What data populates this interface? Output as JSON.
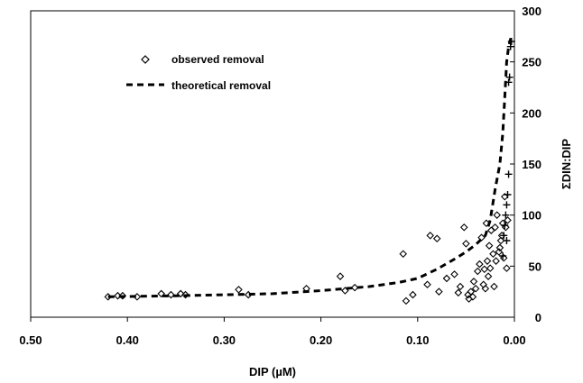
{
  "chart_data": {
    "type": "scatter",
    "title": "",
    "xlabel": "DIP (µM)",
    "ylabel": "ΣDIN:DIP",
    "xlim": [
      0.5,
      0.0
    ],
    "x_reversed": true,
    "ylim": [
      0,
      300
    ],
    "x_ticks": [
      "0.50",
      "0.40",
      "0.30",
      "0.20",
      "0.10",
      "0.00"
    ],
    "y_ticks": [
      "0",
      "50",
      "100",
      "150",
      "200",
      "250",
      "300"
    ],
    "y_axis_position": "right",
    "grid": false,
    "legend": {
      "position": "top-left",
      "entries": [
        "observed removal",
        "theoretical removal"
      ]
    },
    "series": [
      {
        "name": "observed removal",
        "marker": "diamond-open",
        "points": [
          [
            0.42,
            20
          ],
          [
            0.41,
            21
          ],
          [
            0.405,
            21
          ],
          [
            0.39,
            20
          ],
          [
            0.365,
            23
          ],
          [
            0.355,
            22
          ],
          [
            0.345,
            23
          ],
          [
            0.34,
            22
          ],
          [
            0.285,
            27
          ],
          [
            0.275,
            22
          ],
          [
            0.215,
            28
          ],
          [
            0.18,
            40
          ],
          [
            0.175,
            26
          ],
          [
            0.165,
            29
          ],
          [
            0.115,
            62
          ],
          [
            0.112,
            16
          ],
          [
            0.105,
            22
          ],
          [
            0.09,
            32
          ],
          [
            0.087,
            80
          ],
          [
            0.08,
            77
          ],
          [
            0.078,
            25
          ],
          [
            0.07,
            38
          ],
          [
            0.062,
            42
          ],
          [
            0.058,
            24
          ],
          [
            0.056,
            30
          ],
          [
            0.052,
            88
          ],
          [
            0.05,
            72
          ],
          [
            0.048,
            22
          ],
          [
            0.047,
            18
          ],
          [
            0.045,
            25
          ],
          [
            0.043,
            20
          ],
          [
            0.042,
            35
          ],
          [
            0.04,
            28
          ],
          [
            0.038,
            45
          ],
          [
            0.036,
            52
          ],
          [
            0.034,
            78
          ],
          [
            0.032,
            32
          ],
          [
            0.031,
            47
          ],
          [
            0.03,
            28
          ],
          [
            0.029,
            92
          ],
          [
            0.028,
            55
          ],
          [
            0.027,
            40
          ],
          [
            0.026,
            70
          ],
          [
            0.025,
            48
          ],
          [
            0.024,
            85
          ],
          [
            0.022,
            62
          ],
          [
            0.021,
            30
          ],
          [
            0.02,
            88
          ],
          [
            0.019,
            55
          ],
          [
            0.018,
            100
          ],
          [
            0.016,
            64
          ],
          [
            0.015,
            68
          ],
          [
            0.014,
            75
          ],
          [
            0.013,
            80
          ],
          [
            0.012,
            92
          ],
          [
            0.011,
            58
          ],
          [
            0.01,
            118
          ],
          [
            0.009,
            88
          ],
          [
            0.008,
            48
          ],
          [
            0.007,
            95
          ]
        ]
      },
      {
        "name": "",
        "marker": "plus",
        "points": [
          [
            0.012,
            60
          ],
          [
            0.011,
            80
          ],
          [
            0.01,
            90
          ],
          [
            0.009,
            100
          ],
          [
            0.008,
            110
          ],
          [
            0.007,
            120
          ],
          [
            0.006,
            140
          ],
          [
            0.008,
            75
          ],
          [
            0.006,
            230
          ],
          [
            0.005,
            235
          ],
          [
            0.004,
            265
          ],
          [
            0.003,
            270
          ]
        ]
      },
      {
        "name": "theoretical removal",
        "style": "dashed",
        "points": [
          [
            0.42,
            20
          ],
          [
            0.35,
            21
          ],
          [
            0.3,
            22
          ],
          [
            0.25,
            23
          ],
          [
            0.2,
            26
          ],
          [
            0.15,
            30
          ],
          [
            0.12,
            34
          ],
          [
            0.1,
            38
          ],
          [
            0.08,
            47
          ],
          [
            0.06,
            58
          ],
          [
            0.05,
            64
          ],
          [
            0.04,
            71
          ],
          [
            0.03,
            80
          ],
          [
            0.025,
            95
          ],
          [
            0.02,
            125
          ],
          [
            0.015,
            150
          ],
          [
            0.012,
            180
          ],
          [
            0.01,
            215
          ],
          [
            0.008,
            250
          ],
          [
            0.006,
            265
          ],
          [
            0.004,
            272
          ],
          [
            0.003,
            275
          ]
        ]
      }
    ]
  }
}
